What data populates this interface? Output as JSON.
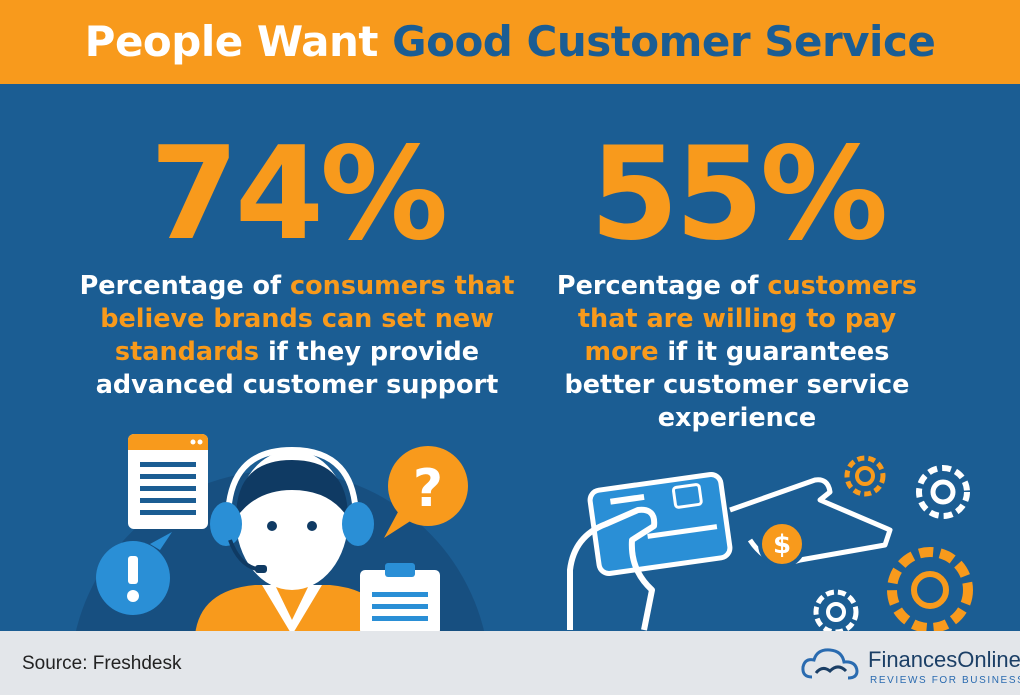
{
  "header": {
    "title_white": "People Want",
    "title_blue": "Good Customer Service"
  },
  "stats": [
    {
      "value": "74%",
      "text_parts": [
        {
          "text": "Percentage of ",
          "highlight": false
        },
        {
          "text": "consumers that believe brands can set new standards",
          "highlight": true
        },
        {
          "text": " if they provide advanced customer support",
          "highlight": false
        }
      ]
    },
    {
      "value": "55%",
      "text_parts": [
        {
          "text": "Percentage of ",
          "highlight": false
        },
        {
          "text": "customers that are willing to pay more",
          "highlight": true
        },
        {
          "text": " if it guarantees better customer service experience",
          "highlight": false
        }
      ]
    }
  ],
  "icons": {
    "left": [
      "browser-window-icon",
      "exclamation-bubble-icon",
      "question-bubble-icon",
      "support-agent-icon",
      "clipboard-icon"
    ],
    "right": [
      "credit-card-hand-icon",
      "coin-hand-icon",
      "gear-icon"
    ]
  },
  "footer": {
    "source": "Source:  Freshdesk",
    "brand_name": "FinancesOnline",
    "brand_tagline": "REVIEWS FOR BUSINESS"
  },
  "colors": {
    "orange": "#f89a1c",
    "blue": "#1b5d93",
    "footer_bg": "#e3e6ea"
  }
}
